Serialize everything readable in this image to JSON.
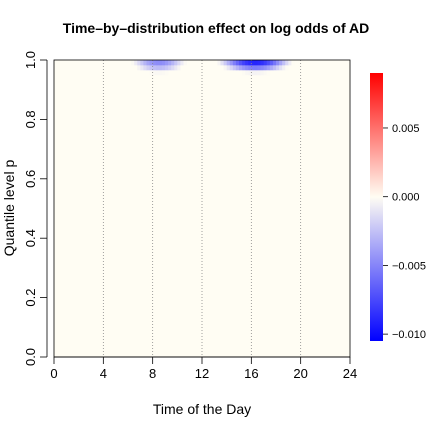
{
  "chart_data": {
    "type": "heatmap",
    "title": "Time–by–distribution effect on log odds of AD",
    "xlabel": "Time of the Day",
    "ylabel": "Quantile level p",
    "xlim": [
      0,
      24
    ],
    "ylim": [
      0,
      1
    ],
    "x_ticks": [
      0,
      4,
      8,
      12,
      16,
      20,
      24
    ],
    "x_tick_labels": [
      "0",
      "4",
      "8",
      "12",
      "16",
      "20",
      "24"
    ],
    "y_ticks": [
      0.0,
      0.2,
      0.4,
      0.6,
      0.8,
      1.0
    ],
    "y_tick_labels": [
      "0.0",
      "0.2",
      "0.4",
      "0.6",
      "0.8",
      "1.0"
    ],
    "vertical_gridlines_at": [
      4,
      8,
      12,
      16,
      20
    ],
    "background_value": 0.0,
    "blobs": [
      {
        "center_time": 8.5,
        "center_p": 1.0,
        "time_halfwidth": 2.3,
        "p_halfwidth": 0.045,
        "min_value": -0.005
      },
      {
        "center_time": 16.3,
        "center_p": 1.0,
        "time_halfwidth": 3.2,
        "p_halfwidth": 0.045,
        "min_value": -0.0095
      }
    ],
    "colorbar": {
      "range": [
        -0.0105,
        0.009
      ],
      "ticks": [
        -0.01,
        -0.005,
        0.0,
        0.005
      ],
      "tick_labels": [
        "−0.010",
        "−0.005",
        "0.000",
        "0.005"
      ],
      "colors": {
        "low": "#0000ff",
        "mid": "#fffdf3",
        "high": "#ff0000"
      }
    }
  }
}
